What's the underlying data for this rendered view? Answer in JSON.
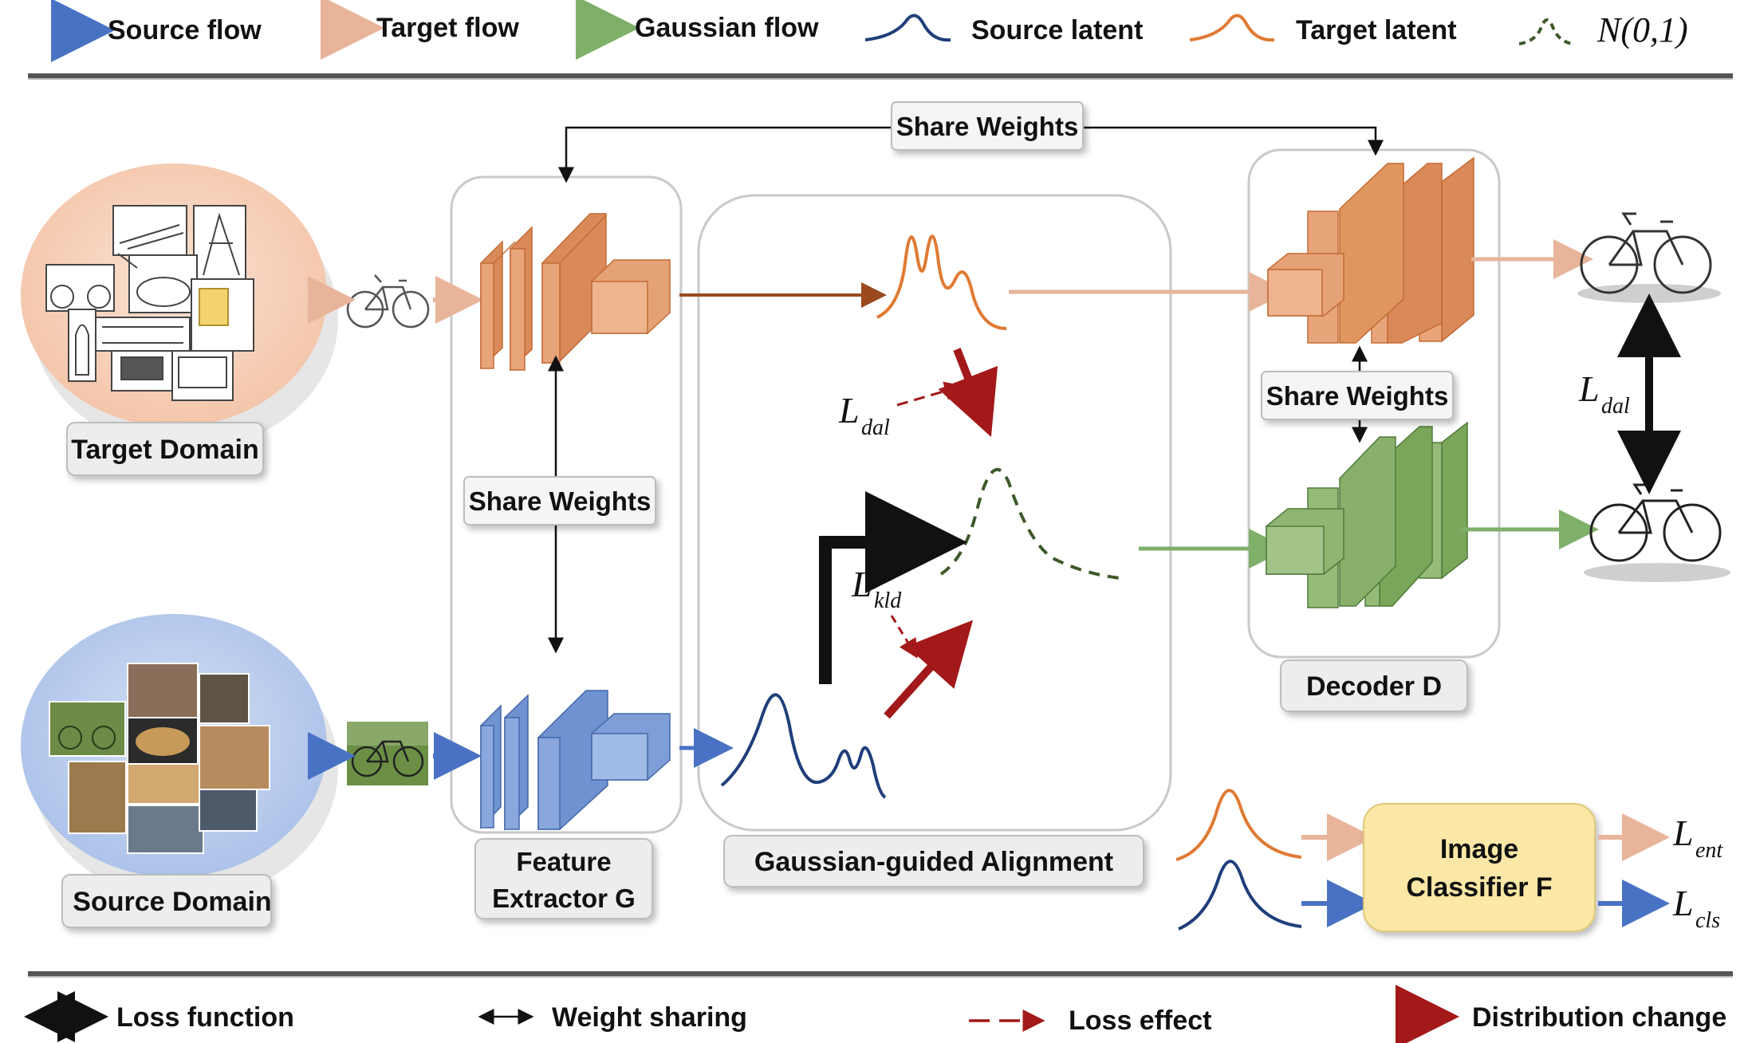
{
  "legend_top": {
    "source_flow": "Source flow",
    "target_flow": "Target flow",
    "gaussian_flow": "Gaussian flow",
    "source_latent": "Source latent",
    "target_latent": "Target latent",
    "normal_symbol": "N(0,1)"
  },
  "legend_bottom": {
    "loss_function": "Loss function",
    "weight_sharing": "Weight sharing",
    "loss_effect": "Loss effect",
    "distribution_change": "Distribution change"
  },
  "labels": {
    "target_domain": "Target Domain",
    "source_domain": "Source Domain",
    "share_weights_top": "Share Weights",
    "share_weights_encoder": "Share Weights",
    "share_weights_decoder": "Share Weights",
    "feature_extractor_line1": "Feature",
    "feature_extractor_line2": "Extractor G",
    "gaussian_alignment": "Gaussian-guided Alignment",
    "decoder": "Decoder D",
    "classifier_line1": "Image",
    "classifier_line2": "Classifier F"
  },
  "losses": {
    "dal_main": "L",
    "dal_main_sub": "dal",
    "dal_right": "L",
    "dal_right_sub": "dal",
    "kld": "L",
    "kld_sub": "kld",
    "ent": "L",
    "ent_sub": "ent",
    "cls": "L",
    "cls_sub": "cls"
  },
  "colors": {
    "source": "#4a72c4",
    "target": "#e8b49a",
    "gaussian": "#7fb069",
    "source_latent": "#1f3f7a",
    "target_latent": "#e07a34",
    "normal": "#3d5a2a",
    "loss_red": "#a31818",
    "classifier_fill": "#fbe7a6"
  }
}
